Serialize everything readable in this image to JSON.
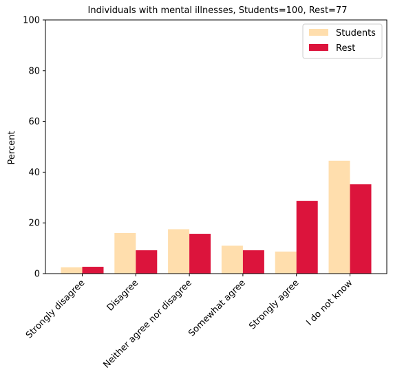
{
  "chart_data": {
    "type": "bar",
    "title": "Individuals with mental illnesses, Students=100, Rest=77",
    "xlabel": "",
    "ylabel": "Percent",
    "ylim": [
      0,
      100
    ],
    "yticks": [
      "0",
      "20",
      "40",
      "60",
      "80",
      "100"
    ],
    "categories": [
      "Strongly disagree",
      "Disagree",
      "Neither agree nor disagree",
      "Somewhat agree",
      "Strongly agree",
      "I do not know"
    ],
    "series": [
      {
        "name": "Students",
        "color": "#ffdead",
        "values": [
          2.5,
          16.0,
          17.5,
          11.0,
          8.7,
          44.5
        ]
      },
      {
        "name": "Rest",
        "color": "#dc143c",
        "values": [
          2.7,
          9.2,
          15.7,
          9.2,
          28.7,
          35.2
        ]
      }
    ],
    "legend_position": "top-right",
    "grid": false
  }
}
